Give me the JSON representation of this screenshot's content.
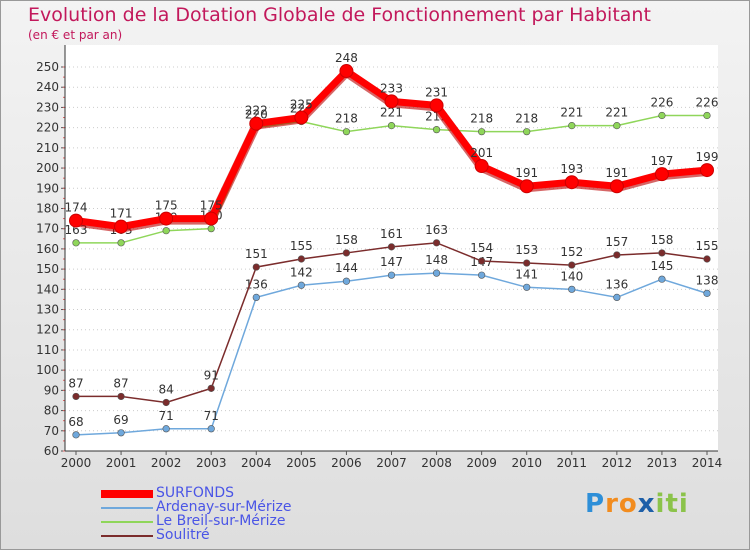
{
  "chart_data": {
    "type": "line",
    "title": "Evolution de la Dotation Globale de Fonctionnement par Habitant",
    "subtitle": "(en € et par an)",
    "xlabel": "",
    "ylabel": "",
    "categories": [
      "2000",
      "2001",
      "2002",
      "2003",
      "2004",
      "2005",
      "2006",
      "2007",
      "2008",
      "2009",
      "2010",
      "2011",
      "2012",
      "2013",
      "2014"
    ],
    "ylim": [
      60,
      250
    ],
    "ytick_step": 10,
    "grid": "dotted-horizontal",
    "series": [
      {
        "name": "SURFONDS",
        "color": "#ff0000",
        "emphasis": true,
        "values": [
          174,
          171,
          175,
          175,
          222,
          225,
          248,
          233,
          231,
          201,
          191,
          193,
          191,
          197,
          199
        ]
      },
      {
        "name": "Ardenay-sur-Mérize",
        "color": "#6fa8dc",
        "values": [
          68,
          69,
          71,
          71,
          136,
          142,
          144,
          147,
          148,
          147,
          141,
          140,
          136,
          145,
          138
        ]
      },
      {
        "name": "Le Breil-sur-Mérize",
        "color": "#8fd65a",
        "values": [
          163,
          163,
          169,
          170,
          220,
          223,
          218,
          221,
          219,
          218,
          218,
          221,
          221,
          226,
          226
        ]
      },
      {
        "name": "Soulitré",
        "color": "#7b2c2c",
        "values": [
          87,
          87,
          84,
          91,
          151,
          155,
          158,
          161,
          163,
          154,
          153,
          152,
          157,
          158,
          155
        ]
      }
    ]
  },
  "legend": {
    "label_color": "#4a55e6"
  },
  "logo": {
    "letters": [
      "P",
      "r",
      "o",
      "x",
      "i",
      "t",
      "i"
    ],
    "colors": [
      "#2e8fd8",
      "#f28c1e",
      "#f28c1e",
      "#1e5fa8",
      "#8bc34a",
      "#8bc34a",
      "#8bc34a"
    ]
  }
}
